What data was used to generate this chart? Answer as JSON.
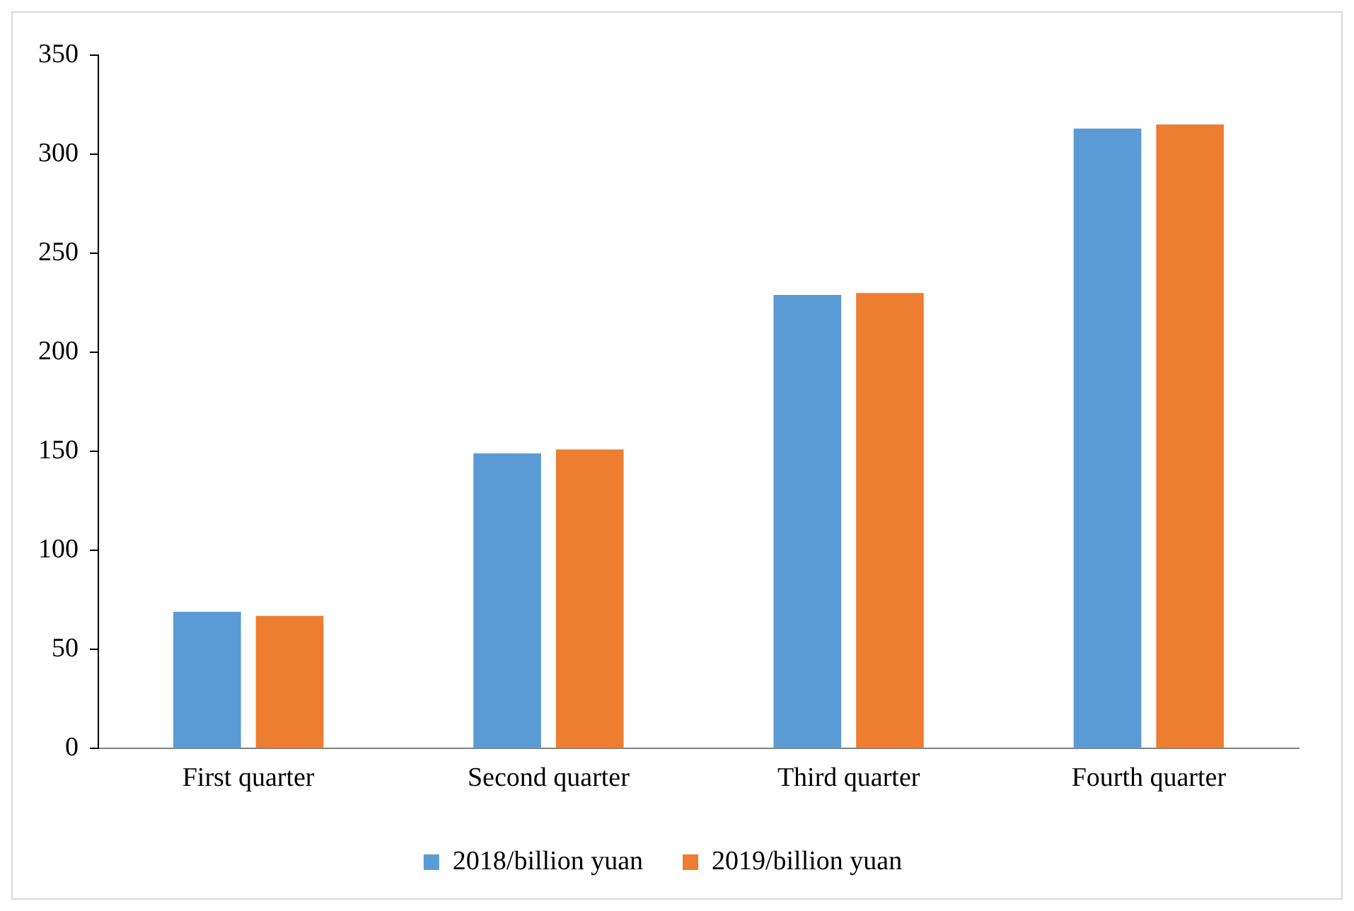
{
  "chart_data": {
    "type": "bar",
    "categories": [
      "First quarter",
      "Second quarter",
      "Third quarter",
      "Fourth quarter"
    ],
    "series": [
      {
        "name": "2018/billion yuan",
        "color": "#5b9bd5",
        "values": [
          69,
          149,
          229,
          313
        ]
      },
      {
        "name": "2019/billion yuan",
        "color": "#ed7d31",
        "values": [
          67,
          151,
          230,
          315
        ]
      }
    ],
    "ylim": [
      0,
      350
    ],
    "yticks": [
      0,
      50,
      100,
      150,
      200,
      250,
      300,
      350
    ],
    "grid": false,
    "legend": "bottom"
  }
}
